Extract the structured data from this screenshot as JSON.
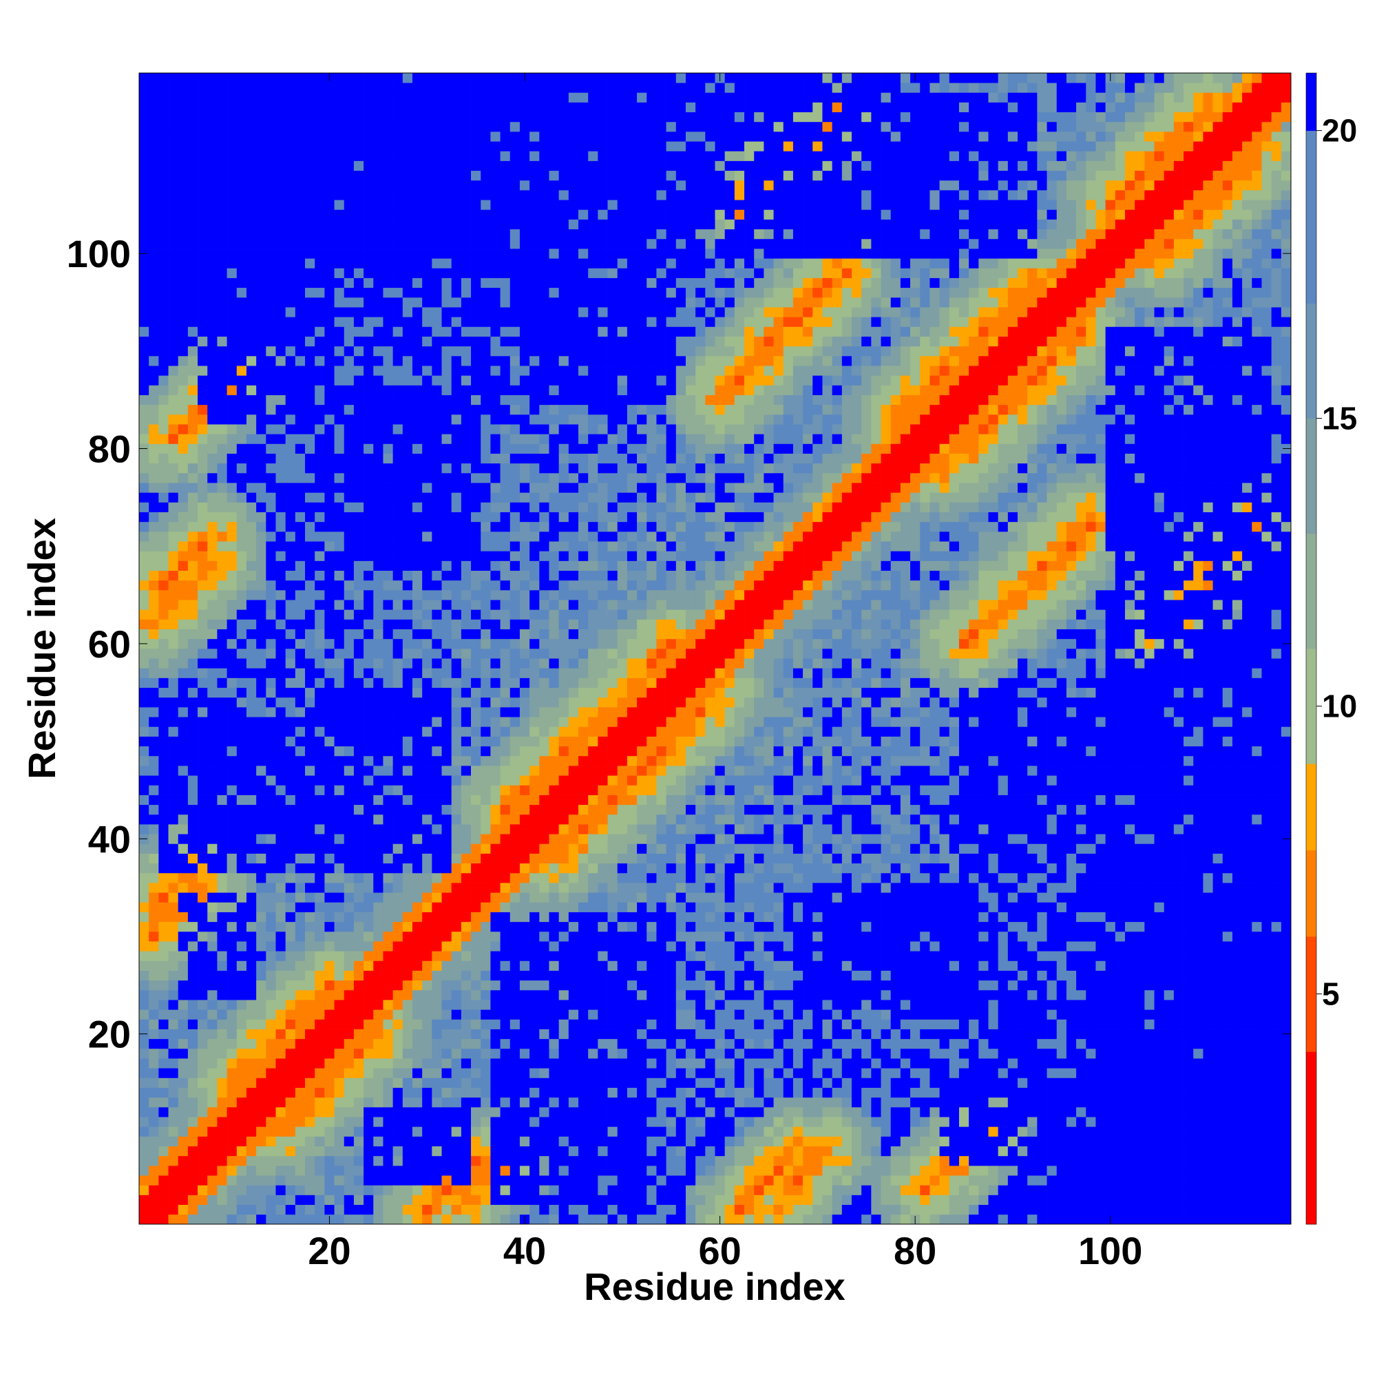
{
  "chart_data": {
    "type": "heatmap",
    "title": "",
    "xlabel": "Residue index",
    "ylabel": "Residue index",
    "n_residues": 118,
    "xlim": [
      1,
      118
    ],
    "ylim": [
      1,
      118
    ],
    "x_ticks": [
      20,
      40,
      60,
      80,
      100
    ],
    "y_ticks": [
      20,
      40,
      60,
      80,
      100
    ],
    "colorbar": {
      "range": [
        1,
        21
      ],
      "ticks": [
        5,
        10,
        15,
        20
      ],
      "bands": [
        {
          "from": 1,
          "to": 4,
          "color": "#ff0000"
        },
        {
          "from": 4,
          "to": 6,
          "color": "#ff4a00"
        },
        {
          "from": 6,
          "to": 7.5,
          "color": "#ff8000"
        },
        {
          "from": 7.5,
          "to": 9,
          "color": "#ffa500"
        },
        {
          "from": 9,
          "to": 11,
          "color": "#9ebc8c"
        },
        {
          "from": 11,
          "to": 13,
          "color": "#90ae96"
        },
        {
          "from": 13,
          "to": 15,
          "color": "#7e9fa4"
        },
        {
          "from": 15,
          "to": 17,
          "color": "#6d94b4"
        },
        {
          "from": 17,
          "to": 20,
          "color": "#5b88c0"
        },
        {
          "from": 20,
          "to": 21,
          "color": "#0000ff"
        }
      ]
    },
    "contact_segments": [
      {
        "i0": 2,
        "j0": 30,
        "i1": 7,
        "j1": 35
      },
      {
        "i0": 3,
        "j0": 66,
        "i1": 8,
        "j1": 71
      },
      {
        "i0": 4,
        "j0": 81,
        "i1": 10,
        "j1": 87
      },
      {
        "i0": 10,
        "j0": 15,
        "i1": 20,
        "j1": 25
      },
      {
        "i0": 33,
        "j0": 2,
        "i1": 37,
        "j1": 6
      },
      {
        "i0": 38,
        "j0": 43,
        "i1": 55,
        "j1": 60
      },
      {
        "i0": 62,
        "j0": 2,
        "i1": 68,
        "j1": 8
      },
      {
        "i0": 64,
        "j0": 90,
        "i1": 72,
        "j1": 98
      },
      {
        "i0": 78,
        "j0": 83,
        "i1": 92,
        "j1": 97
      },
      {
        "i0": 92,
        "j0": 67,
        "i1": 98,
        "j1": 73
      },
      {
        "i0": 100,
        "j0": 105,
        "i1": 110,
        "j1": 115
      },
      {
        "i0": 68,
        "j0": 110,
        "i1": 72,
        "j1": 114
      },
      {
        "i0": 85,
        "j0": 60,
        "i1": 90,
        "j1": 65
      },
      {
        "i0": 105,
        "j0": 62,
        "i1": 110,
        "j1": 67
      }
    ],
    "far_regions": [
      {
        "x0": 22,
        "x1": 78,
        "y0": 103,
        "y1": 118
      },
      {
        "x0": 98,
        "x1": 118,
        "y0": 2,
        "y1": 58
      },
      {
        "x0": 7,
        "x1": 15,
        "y0": 83,
        "y1": 95
      },
      {
        "x0": 20,
        "x1": 32,
        "y0": 40,
        "y1": 55
      },
      {
        "x0": 37,
        "x1": 52,
        "y0": 3,
        "y1": 32
      },
      {
        "x0": 68,
        "x1": 86,
        "y0": 22,
        "y1": 35
      },
      {
        "x0": 100,
        "x1": 116,
        "y0": 60,
        "y1": 92
      },
      {
        "x0": 5,
        "x1": 12,
        "y0": 24,
        "y1": 34
      },
      {
        "x0": 85,
        "x1": 100,
        "y0": 40,
        "y1": 55
      }
    ]
  }
}
